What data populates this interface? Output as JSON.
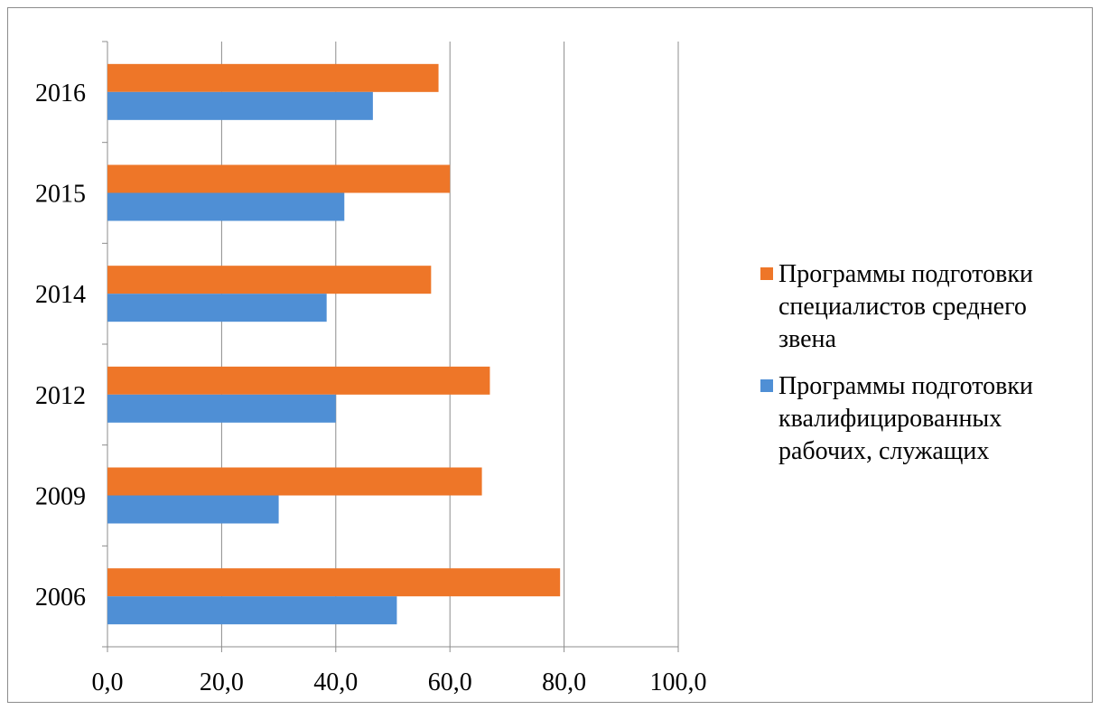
{
  "chart_data": {
    "type": "bar",
    "orientation": "horizontal",
    "categories": [
      "2006",
      "2009",
      "2012",
      "2014",
      "2015",
      "2016"
    ],
    "series": [
      {
        "name": "Программы подготовки квалифицированных рабочих, служащих",
        "color": "#4f8fd5",
        "values": [
          50.7,
          30.0,
          40.0,
          38.4,
          41.5,
          46.5
        ]
      },
      {
        "name": "Программы подготовки специалистов среднего звена",
        "color": "#ee7628",
        "values": [
          79.3,
          65.6,
          67.0,
          56.7,
          60.0,
          58.0
        ]
      }
    ],
    "xlim": [
      0,
      100
    ],
    "xticks": [
      "0,0",
      "20,0",
      "40,0",
      "60,0",
      "80,0",
      "100,0"
    ],
    "xtick_values": [
      0,
      20,
      40,
      60,
      80,
      100
    ],
    "grid": "vertical",
    "legend_position": "right",
    "title": "",
    "xlabel": "",
    "ylabel": ""
  }
}
